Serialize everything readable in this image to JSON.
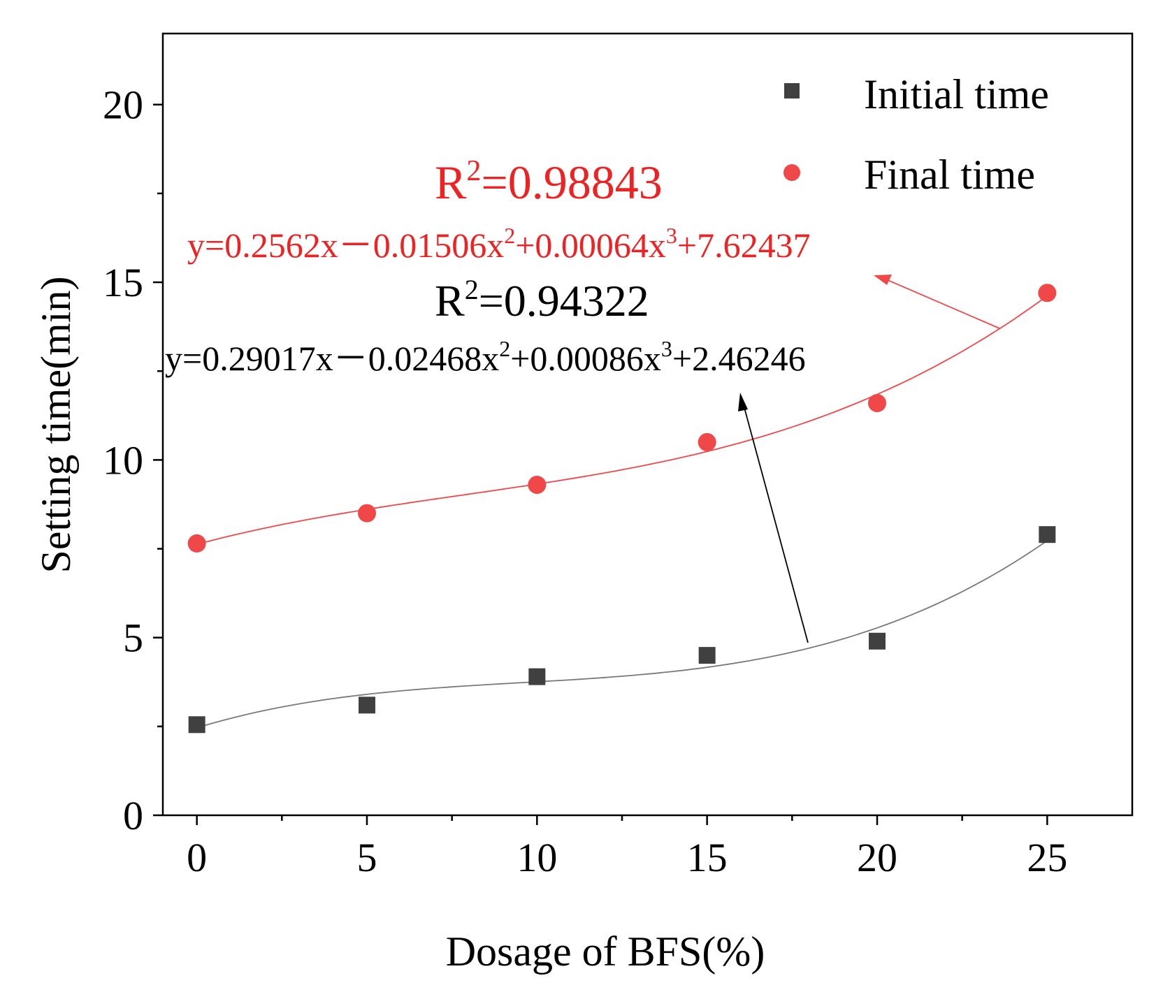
{
  "chart_data": {
    "type": "scatter",
    "title": "",
    "xlabel": "Dosage of BFS(%)",
    "ylabel": "Setting time(min)",
    "xlim": [
      -1,
      27.5
    ],
    "ylim": [
      0,
      22
    ],
    "xticks": [
      0,
      5,
      10,
      15,
      20,
      25
    ],
    "xtick_labels": [
      "0",
      "5",
      "10",
      "15",
      "20",
      "25"
    ],
    "yticks": [
      0,
      5,
      10,
      15,
      20
    ],
    "ytick_labels": [
      "0",
      "5",
      "10",
      "15",
      "20"
    ],
    "legend_position": "top-right",
    "series": [
      {
        "name": "Initial time",
        "marker": "square",
        "color": "#404040",
        "x": [
          0,
          5,
          10,
          15,
          20,
          25
        ],
        "y": [
          2.55,
          3.1,
          3.9,
          4.5,
          4.9,
          7.9
        ],
        "fit": {
          "coefficients": {
            "a1": 0.29017,
            "a2": -0.02468,
            "a3": 0.00086,
            "c": 2.46246
          },
          "color": "#7a7a7a",
          "r2_label": "R",
          "r2_value": "=0.94322",
          "eq_y": "y=0.29017x",
          "eq_dash": "－",
          "eq_t2": "0.02468x",
          "eq_t3": "+0.00086x",
          "eq_c": "+2.46246",
          "annotation_color": "#000000"
        }
      },
      {
        "name": "Final time",
        "marker": "circle",
        "color": "#f04848",
        "x": [
          0,
          5,
          10,
          15,
          20,
          25
        ],
        "y": [
          7.65,
          8.5,
          9.3,
          10.5,
          11.6,
          14.7
        ],
        "fit": {
          "coefficients": {
            "a1": 0.2562,
            "a2": -0.01506,
            "a3": 0.00064,
            "c": 7.62437
          },
          "color": "#f04848",
          "r2_label": "R",
          "r2_value": "=0.98843",
          "eq_y": "y=0.2562x",
          "eq_dash": "－",
          "eq_t2": "0.01506x",
          "eq_t3": "+0.00064x",
          "eq_c": "+7.62437",
          "annotation_color": "#ee2222"
        }
      }
    ],
    "superscripts": {
      "two": "2",
      "three": "3"
    }
  }
}
